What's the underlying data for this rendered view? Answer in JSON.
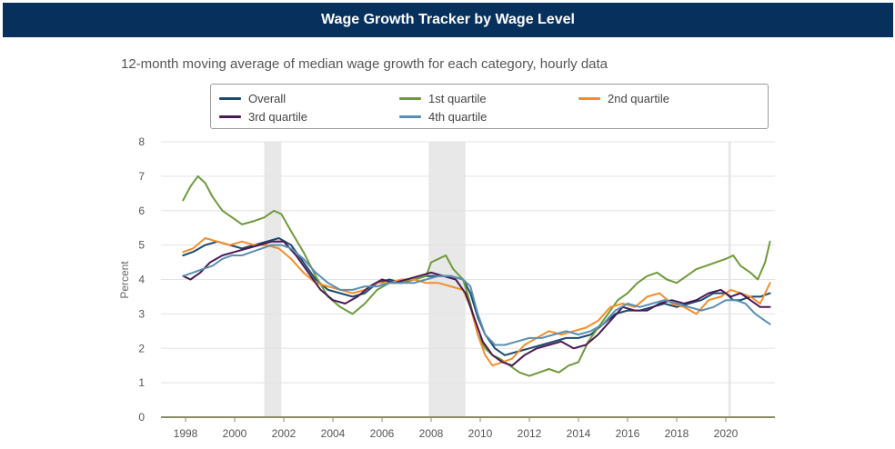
{
  "header": {
    "title": "Wage Growth Tracker by Wage Level"
  },
  "chart_data": {
    "type": "line",
    "title": "Wage Growth Tracker by Wage Level",
    "subtitle": "12-month moving average of median wage growth for each category, hourly data",
    "xlabel": "",
    "ylabel": "Percent",
    "xlim": [
      1997.0,
      2022.0
    ],
    "ylim": [
      0,
      8
    ],
    "yticks": [
      0,
      1,
      2,
      3,
      4,
      5,
      6,
      7,
      8
    ],
    "xticks": [
      "1998",
      "2000",
      "2002",
      "2004",
      "2006",
      "2008",
      "2010",
      "2012",
      "2014",
      "2016",
      "2018",
      "2020"
    ],
    "xtick_values": [
      1998,
      2000,
      2002,
      2004,
      2006,
      2008,
      2010,
      2012,
      2014,
      2016,
      2018,
      2020
    ],
    "grid": true,
    "legend_position": "top",
    "recessions": [
      {
        "start": 2001.2,
        "end": 2001.9
      },
      {
        "start": 2007.9,
        "end": 2009.4
      },
      {
        "start": 2020.1,
        "end": 2020.2
      }
    ],
    "series": [
      {
        "name": "Overall",
        "color": "#1c4a6e",
        "x": [
          1997.9,
          1998.3,
          1998.8,
          1999.3,
          1999.8,
          2000.3,
          2000.8,
          2001.3,
          2001.8,
          2002.3,
          2002.8,
          2003.3,
          2003.8,
          2004.3,
          2004.8,
          2005.3,
          2005.8,
          2006.3,
          2006.8,
          2007.3,
          2007.8,
          2008.3,
          2008.8,
          2009.3,
          2009.6,
          2009.9,
          2010.2,
          2010.6,
          2011.0,
          2011.5,
          2012.0,
          2012.5,
          2013.0,
          2013.5,
          2014.0,
          2014.5,
          2015.0,
          2015.5,
          2016.0,
          2016.5,
          2017.0,
          2017.5,
          2018.0,
          2018.5,
          2019.0,
          2019.5,
          2020.0,
          2020.3,
          2020.6,
          2021.0,
          2021.4,
          2021.8
        ],
        "y": [
          4.7,
          4.8,
          5.0,
          5.1,
          5.0,
          4.9,
          5.0,
          5.1,
          5.2,
          5.0,
          4.5,
          4.0,
          3.7,
          3.6,
          3.5,
          3.6,
          3.9,
          4.0,
          3.9,
          4.0,
          4.1,
          4.1,
          4.1,
          4.0,
          3.6,
          2.9,
          2.4,
          2.0,
          1.8,
          1.9,
          2.0,
          2.1,
          2.2,
          2.3,
          2.3,
          2.4,
          2.7,
          3.0,
          3.1,
          3.1,
          3.2,
          3.3,
          3.2,
          3.3,
          3.4,
          3.6,
          3.6,
          3.4,
          3.4,
          3.5,
          3.5,
          3.6
        ]
      },
      {
        "name": "1st quartile",
        "color": "#6f9a3b",
        "x": [
          1997.9,
          1998.2,
          1998.5,
          1998.8,
          1999.1,
          1999.5,
          1999.9,
          2000.3,
          2000.8,
          2001.2,
          2001.6,
          2001.9,
          2002.3,
          2002.8,
          2003.3,
          2003.8,
          2004.3,
          2004.8,
          2005.3,
          2005.8,
          2006.3,
          2006.8,
          2007.3,
          2007.8,
          2008.0,
          2008.3,
          2008.6,
          2008.9,
          2009.3,
          2009.6,
          2009.9,
          2010.2,
          2010.5,
          2010.8,
          2011.2,
          2011.6,
          2012.0,
          2012.4,
          2012.8,
          2013.2,
          2013.6,
          2014.0,
          2014.4,
          2014.8,
          2015.2,
          2015.6,
          2016.0,
          2016.4,
          2016.8,
          2017.2,
          2017.6,
          2018.0,
          2018.4,
          2018.8,
          2019.2,
          2019.6,
          2020.0,
          2020.3,
          2020.6,
          2021.0,
          2021.3,
          2021.6,
          2021.8
        ],
        "y": [
          6.3,
          6.7,
          7.0,
          6.8,
          6.4,
          6.0,
          5.8,
          5.6,
          5.7,
          5.8,
          6.0,
          5.9,
          5.4,
          4.8,
          4.1,
          3.5,
          3.2,
          3.0,
          3.3,
          3.7,
          3.9,
          3.9,
          4.0,
          4.1,
          4.5,
          4.6,
          4.7,
          4.3,
          4.0,
          3.3,
          2.4,
          2.0,
          1.8,
          1.7,
          1.5,
          1.3,
          1.2,
          1.3,
          1.4,
          1.3,
          1.5,
          1.6,
          2.2,
          2.6,
          3.0,
          3.4,
          3.6,
          3.9,
          4.1,
          4.2,
          4.0,
          3.9,
          4.1,
          4.3,
          4.4,
          4.5,
          4.6,
          4.7,
          4.4,
          4.2,
          4.0,
          4.5,
          5.1
        ]
      },
      {
        "name": "2nd quartile",
        "color": "#f28e2b",
        "x": [
          1997.9,
          1998.3,
          1998.8,
          1999.3,
          1999.8,
          2000.3,
          2000.8,
          2001.3,
          2001.8,
          2002.3,
          2002.8,
          2003.3,
          2003.8,
          2004.3,
          2004.8,
          2005.3,
          2005.8,
          2006.3,
          2006.8,
          2007.3,
          2007.8,
          2008.3,
          2008.8,
          2009.3,
          2009.6,
          2009.9,
          2010.2,
          2010.5,
          2010.9,
          2011.3,
          2011.8,
          2012.3,
          2012.8,
          2013.3,
          2013.8,
          2014.3,
          2014.8,
          2015.3,
          2015.8,
          2016.3,
          2016.8,
          2017.3,
          2017.8,
          2018.3,
          2018.8,
          2019.3,
          2019.8,
          2020.2,
          2020.6,
          2021.0,
          2021.4,
          2021.8
        ],
        "y": [
          4.8,
          4.9,
          5.2,
          5.1,
          5.0,
          5.1,
          5.0,
          5.0,
          4.9,
          4.6,
          4.2,
          3.9,
          3.8,
          3.7,
          3.6,
          3.7,
          3.9,
          3.9,
          4.0,
          4.0,
          3.9,
          3.9,
          3.8,
          3.7,
          3.2,
          2.4,
          1.8,
          1.5,
          1.6,
          1.7,
          2.1,
          2.3,
          2.5,
          2.4,
          2.5,
          2.6,
          2.8,
          3.2,
          3.3,
          3.2,
          3.5,
          3.6,
          3.3,
          3.2,
          3.0,
          3.4,
          3.5,
          3.7,
          3.6,
          3.5,
          3.3,
          3.9
        ]
      },
      {
        "name": "3rd quartile",
        "color": "#4a1a55",
        "x": [
          1997.9,
          1998.2,
          1998.6,
          1999.0,
          1999.5,
          2000.0,
          2000.5,
          2001.0,
          2001.5,
          2002.0,
          2002.5,
          2003.0,
          2003.5,
          2004.0,
          2004.5,
          2005.0,
          2005.5,
          2006.0,
          2006.5,
          2007.0,
          2007.5,
          2008.0,
          2008.5,
          2009.0,
          2009.4,
          2009.8,
          2010.1,
          2010.5,
          2010.9,
          2011.3,
          2011.8,
          2012.3,
          2012.8,
          2013.3,
          2013.8,
          2014.3,
          2014.8,
          2015.3,
          2015.8,
          2016.3,
          2016.8,
          2017.3,
          2017.8,
          2018.3,
          2018.8,
          2019.3,
          2019.8,
          2020.2,
          2020.6,
          2021.0,
          2021.4,
          2021.8
        ],
        "y": [
          4.1,
          4.0,
          4.2,
          4.5,
          4.7,
          4.8,
          4.9,
          5.0,
          5.1,
          5.1,
          4.7,
          4.2,
          3.7,
          3.4,
          3.3,
          3.5,
          3.8,
          4.0,
          3.9,
          4.0,
          4.1,
          4.2,
          4.1,
          4.0,
          3.6,
          2.8,
          2.2,
          1.8,
          1.6,
          1.5,
          1.8,
          2.0,
          2.1,
          2.2,
          2.0,
          2.1,
          2.4,
          2.8,
          3.2,
          3.1,
          3.1,
          3.3,
          3.4,
          3.3,
          3.4,
          3.6,
          3.7,
          3.5,
          3.6,
          3.4,
          3.2,
          3.2
        ]
      },
      {
        "name": "4th quartile",
        "color": "#5a8fb5",
        "x": [
          1997.9,
          1998.3,
          1998.7,
          1999.1,
          1999.5,
          1999.9,
          2000.3,
          2000.7,
          2001.1,
          2001.5,
          2001.9,
          2002.3,
          2002.8,
          2003.3,
          2003.8,
          2004.3,
          2004.8,
          2005.3,
          2005.8,
          2006.3,
          2006.8,
          2007.3,
          2007.8,
          2008.3,
          2008.8,
          2009.3,
          2009.6,
          2009.9,
          2010.2,
          2010.6,
          2011.0,
          2011.5,
          2012.0,
          2012.5,
          2013.0,
          2013.5,
          2014.0,
          2014.5,
          2015.0,
          2015.5,
          2016.0,
          2016.5,
          2017.0,
          2017.5,
          2018.0,
          2018.5,
          2019.0,
          2019.5,
          2020.0,
          2020.4,
          2020.8,
          2021.2,
          2021.6,
          2021.8
        ],
        "y": [
          4.1,
          4.2,
          4.3,
          4.4,
          4.6,
          4.7,
          4.7,
          4.8,
          4.9,
          5.0,
          5.0,
          4.9,
          4.6,
          4.2,
          3.9,
          3.7,
          3.7,
          3.8,
          3.8,
          3.9,
          3.9,
          3.9,
          4.0,
          4.1,
          4.1,
          4.0,
          3.8,
          3.0,
          2.4,
          2.1,
          2.1,
          2.2,
          2.3,
          2.3,
          2.4,
          2.5,
          2.4,
          2.5,
          2.7,
          3.1,
          3.3,
          3.2,
          3.3,
          3.4,
          3.3,
          3.2,
          3.1,
          3.2,
          3.4,
          3.4,
          3.3,
          3.0,
          2.8,
          2.7
        ]
      }
    ]
  }
}
